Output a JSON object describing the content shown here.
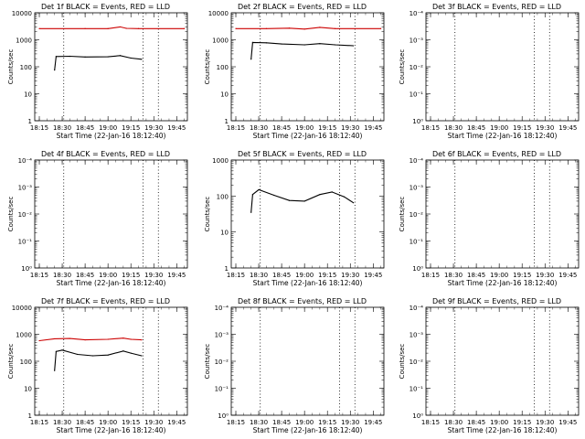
{
  "chart_data": [
    {
      "type": "line",
      "title": "Det 1f BLACK = Events, RED = LLD",
      "xlabel": "Start Time (22-Jan-16 18:12:40)",
      "ylabel": "Counts/sec",
      "y_scale": "log",
      "y_ticks": [
        "1",
        "10",
        "100",
        "1000",
        "10000"
      ],
      "ylim": [
        1,
        10000
      ],
      "x_ticks": [
        "18:15",
        "18:30",
        "18:45",
        "19:00",
        "19:15",
        "19:30",
        "19:45"
      ],
      "series": [
        {
          "color": "#000000",
          "x": [
            "18:25",
            "18:26",
            "18:35",
            "18:45",
            "19:00",
            "19:08",
            "19:15",
            "19:22"
          ],
          "y": [
            75,
            240,
            245,
            230,
            235,
            260,
            210,
            190
          ]
        },
        {
          "color": "#cc0000",
          "x": [
            "18:15",
            "18:45",
            "19:00",
            "19:08",
            "19:12",
            "19:20",
            "19:50"
          ],
          "y": [
            2600,
            2600,
            2600,
            3000,
            2650,
            2600,
            2600
          ]
        }
      ]
    },
    {
      "type": "line",
      "title": "Det 2f BLACK = Events, RED = LLD",
      "xlabel": "Start Time (22-Jan-16 18:12:40)",
      "ylabel": "Counts/sec",
      "y_scale": "log",
      "y_ticks": [
        "1",
        "10",
        "100",
        "1000",
        "10000"
      ],
      "ylim": [
        1,
        10000
      ],
      "x_ticks": [
        "18:15",
        "18:30",
        "18:45",
        "19:00",
        "19:15",
        "19:30",
        "19:45"
      ],
      "series": [
        {
          "color": "#000000",
          "x": [
            "18:25",
            "18:26",
            "18:35",
            "18:45",
            "19:00",
            "19:10",
            "19:20",
            "19:32"
          ],
          "y": [
            190,
            800,
            770,
            700,
            650,
            720,
            650,
            600
          ]
        },
        {
          "color": "#cc0000",
          "x": [
            "18:15",
            "18:35",
            "18:50",
            "19:00",
            "19:10",
            "19:20",
            "19:50"
          ],
          "y": [
            2600,
            2600,
            2700,
            2500,
            2900,
            2600,
            2600
          ]
        }
      ]
    },
    {
      "type": "line",
      "title": "Det 3f BLACK = Events, RED = LLD",
      "xlabel": "Start Time (22-Jan-16 18:12:40)",
      "ylabel": "Counts/sec",
      "y_scale": "log",
      "y_ticks": [
        "10⁰",
        "10⁻¹",
        "10⁻²",
        "10⁻³",
        "10⁻⁴"
      ],
      "ylim": [
        1,
        0.0001
      ],
      "x_ticks": [
        "18:15",
        "18:30",
        "18:45",
        "19:00",
        "19:15",
        "19:30",
        "19:45"
      ],
      "series": []
    },
    {
      "type": "line",
      "title": "Det 4f BLACK = Events, RED = LLD",
      "xlabel": "Start Time (22-Jan-16 18:12:40)",
      "ylabel": "Counts/sec",
      "y_scale": "log",
      "y_ticks": [
        "10⁰",
        "10⁻¹",
        "10⁻²",
        "10⁻³",
        "10⁻⁴"
      ],
      "ylim": [
        1,
        0.0001
      ],
      "x_ticks": [
        "18:15",
        "18:30",
        "18:45",
        "19:00",
        "19:15",
        "19:30",
        "19:45"
      ],
      "series": []
    },
    {
      "type": "line",
      "title": "Det 5f BLACK = Events, RED = LLD",
      "xlabel": "Start Time (22-Jan-16 18:12:40)",
      "ylabel": "Counts/sec",
      "y_scale": "log",
      "y_ticks": [
        "1",
        "10",
        "100",
        "1000"
      ],
      "ylim": [
        1,
        1000
      ],
      "x_ticks": [
        "18:15",
        "18:30",
        "18:45",
        "19:00",
        "19:15",
        "19:30",
        "19:45"
      ],
      "series": [
        {
          "color": "#000000",
          "x": [
            "18:25",
            "18:26",
            "18:30",
            "18:40",
            "18:50",
            "19:00",
            "19:10",
            "19:18",
            "19:26",
            "19:32"
          ],
          "y": [
            35,
            110,
            150,
            105,
            75,
            72,
            110,
            130,
            95,
            65
          ]
        }
      ]
    },
    {
      "type": "line",
      "title": "Det 6f BLACK = Events, RED = LLD",
      "xlabel": "Start Time (22-Jan-16 18:12:40)",
      "ylabel": "Counts/sec",
      "y_scale": "log",
      "y_ticks": [
        "10⁰",
        "10⁻¹",
        "10⁻²",
        "10⁻³",
        "10⁻⁴"
      ],
      "ylim": [
        1,
        0.0001
      ],
      "x_ticks": [
        "18:15",
        "18:30",
        "18:45",
        "19:00",
        "19:15",
        "19:30",
        "19:45"
      ],
      "series": []
    },
    {
      "type": "line",
      "title": "Det 7f BLACK = Events, RED = LLD",
      "xlabel": "Start Time (22-Jan-16 18:12:40)",
      "ylabel": "Counts/sec",
      "y_scale": "log",
      "y_ticks": [
        "1",
        "10",
        "100",
        "1000",
        "10000"
      ],
      "ylim": [
        1,
        10000
      ],
      "x_ticks": [
        "18:15",
        "18:30",
        "18:45",
        "19:00",
        "19:15",
        "19:30",
        "19:45"
      ],
      "series": [
        {
          "color": "#000000",
          "x": [
            "18:25",
            "18:26",
            "18:30",
            "18:40",
            "18:50",
            "19:00",
            "19:10",
            "19:15",
            "19:22"
          ],
          "y": [
            45,
            230,
            260,
            180,
            160,
            170,
            240,
            200,
            160
          ]
        },
        {
          "color": "#cc0000",
          "x": [
            "18:15",
            "18:25",
            "18:35",
            "18:45",
            "19:00",
            "19:10",
            "19:15",
            "19:22"
          ],
          "y": [
            580,
            680,
            700,
            620,
            650,
            720,
            650,
            620
          ]
        }
      ]
    },
    {
      "type": "line",
      "title": "Det 8f BLACK = Events, RED = LLD",
      "xlabel": "Start Time (22-Jan-16 18:12:40)",
      "ylabel": "Counts/sec",
      "y_scale": "log",
      "y_ticks": [
        "10⁰",
        "10⁻¹",
        "10⁻²",
        "10⁻³",
        "10⁻⁴"
      ],
      "ylim": [
        1,
        0.0001
      ],
      "x_ticks": [
        "18:15",
        "18:30",
        "18:45",
        "19:00",
        "19:15",
        "19:30",
        "19:45"
      ],
      "series": []
    },
    {
      "type": "line",
      "title": "Det 9f BLACK = Events, RED = LLD",
      "xlabel": "Start Time (22-Jan-16 18:12:40)",
      "ylabel": "Counts/sec",
      "y_scale": "log",
      "y_ticks": [
        "10⁰",
        "10⁻¹",
        "10⁻²",
        "10⁻³",
        "10⁻⁴"
      ],
      "ylim": [
        1,
        0.0001
      ],
      "x_ticks": [
        "18:15",
        "18:30",
        "18:45",
        "19:00",
        "19:15",
        "19:30",
        "19:45"
      ],
      "series": []
    }
  ]
}
